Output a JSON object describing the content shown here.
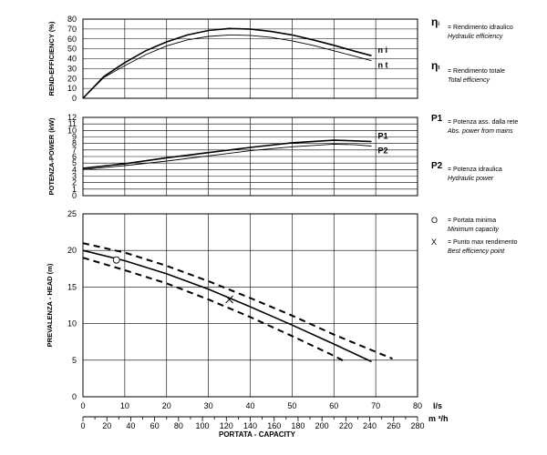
{
  "chart_data": [
    {
      "type": "line",
      "ylabel": "REND-EFFICIENCY (%)",
      "ylim": [
        0,
        80
      ],
      "yticks": [
        0,
        10,
        20,
        30,
        40,
        50,
        60,
        70,
        80
      ],
      "series": [
        {
          "name": "η i",
          "label": "n i",
          "x": [
            0,
            5,
            10,
            15,
            20,
            25,
            30,
            35,
            40,
            45,
            50,
            55,
            60,
            65,
            69
          ],
          "values": [
            0,
            22,
            36,
            48,
            57,
            64,
            68.5,
            70.5,
            70,
            67.5,
            64,
            59,
            53.5,
            47.5,
            43
          ]
        },
        {
          "name": "η t",
          "label": "n t",
          "x": [
            0,
            5,
            10,
            15,
            20,
            25,
            30,
            35,
            40,
            45,
            50,
            55,
            60,
            65,
            69
          ],
          "values": [
            0,
            21,
            33,
            44,
            53,
            59,
            62.5,
            64,
            63.5,
            61.5,
            58,
            53.5,
            48,
            42.5,
            38
          ]
        }
      ]
    },
    {
      "type": "line",
      "ylabel": "POTENZA-POWER (kW)",
      "ylim": [
        0,
        12
      ],
      "yticks": [
        0,
        1,
        2,
        3,
        4,
        5,
        6,
        7,
        8,
        9,
        10,
        11,
        12
      ],
      "series": [
        {
          "name": "P1",
          "label": "P1",
          "x": [
            0,
            10,
            20,
            30,
            40,
            50,
            60,
            65,
            69
          ],
          "values": [
            4.2,
            4.9,
            5.8,
            6.6,
            7.4,
            8.1,
            8.5,
            8.4,
            8.3
          ]
        },
        {
          "name": "P2",
          "label": "P2",
          "x": [
            0,
            10,
            20,
            30,
            40,
            50,
            60,
            65,
            69
          ],
          "values": [
            4.0,
            4.6,
            5.3,
            6.1,
            6.9,
            7.5,
            7.9,
            7.8,
            7.6
          ]
        }
      ]
    },
    {
      "type": "line",
      "ylabel": "PREVALENZA - HEAD (m)",
      "ylim": [
        0,
        25
      ],
      "yticks": [
        0,
        5,
        10,
        15,
        20,
        25
      ],
      "xlim": [
        0,
        80
      ],
      "xticks": [
        0,
        10,
        20,
        30,
        40,
        50,
        60,
        70,
        80
      ],
      "x_unit": "l/s",
      "x2lim": [
        0,
        280
      ],
      "x2ticks": [
        0,
        20,
        40,
        60,
        80,
        100,
        120,
        140,
        160,
        180,
        200,
        220,
        240,
        260,
        280
      ],
      "x2_unit": "m ³/h",
      "xlabel": "PORTATA - CAPACITY",
      "series": [
        {
          "name": "head",
          "style": "solid",
          "x": [
            0,
            10,
            20,
            30,
            40,
            50,
            60,
            69
          ],
          "values": [
            20,
            18.6,
            16.8,
            14.7,
            12.3,
            9.8,
            7.2,
            4.8
          ]
        },
        {
          "name": "head-upper",
          "style": "dashed",
          "x": [
            0,
            10,
            20,
            30,
            40,
            50,
            60,
            74
          ],
          "values": [
            21,
            19.7,
            17.9,
            15.8,
            13.5,
            11.1,
            8.5,
            5.2
          ]
        },
        {
          "name": "head-lower",
          "style": "dashed",
          "x": [
            0,
            10,
            20,
            30,
            40,
            50,
            60,
            63
          ],
          "values": [
            19,
            17.3,
            15.5,
            13.3,
            10.9,
            8.3,
            5.6,
            4.7
          ]
        }
      ],
      "markers": [
        {
          "name": "portata-minima",
          "symbol": "circle",
          "x": 8,
          "y": 18.7
        },
        {
          "name": "punto-max-rendimento",
          "symbol": "cross",
          "x": 35,
          "y": 13.3
        }
      ]
    }
  ],
  "legend": {
    "eta_i": {
      "symbol": "η",
      "sub": "i",
      "label": "= Rendimento idraulico",
      "label_en": "Hydraulic efficiency"
    },
    "eta_t": {
      "symbol": "η",
      "sub": "t",
      "label": "= Rendimento totale",
      "label_en": "Total efficiency"
    },
    "p1": {
      "symbol": "P1",
      "label": "= Potenza ass. dalla rete",
      "label_en": "Abs. power from mains"
    },
    "p2": {
      "symbol": "P2",
      "label": "= Potenza idraulica",
      "label_en": "Hydraulic power"
    },
    "circle": {
      "symbol": "O",
      "label": "= Portata minima",
      "label_en": "Minimum capacity"
    },
    "cross": {
      "symbol": "X",
      "label": "= Punto max rendimento",
      "label_en": "Best efficiency point"
    }
  }
}
